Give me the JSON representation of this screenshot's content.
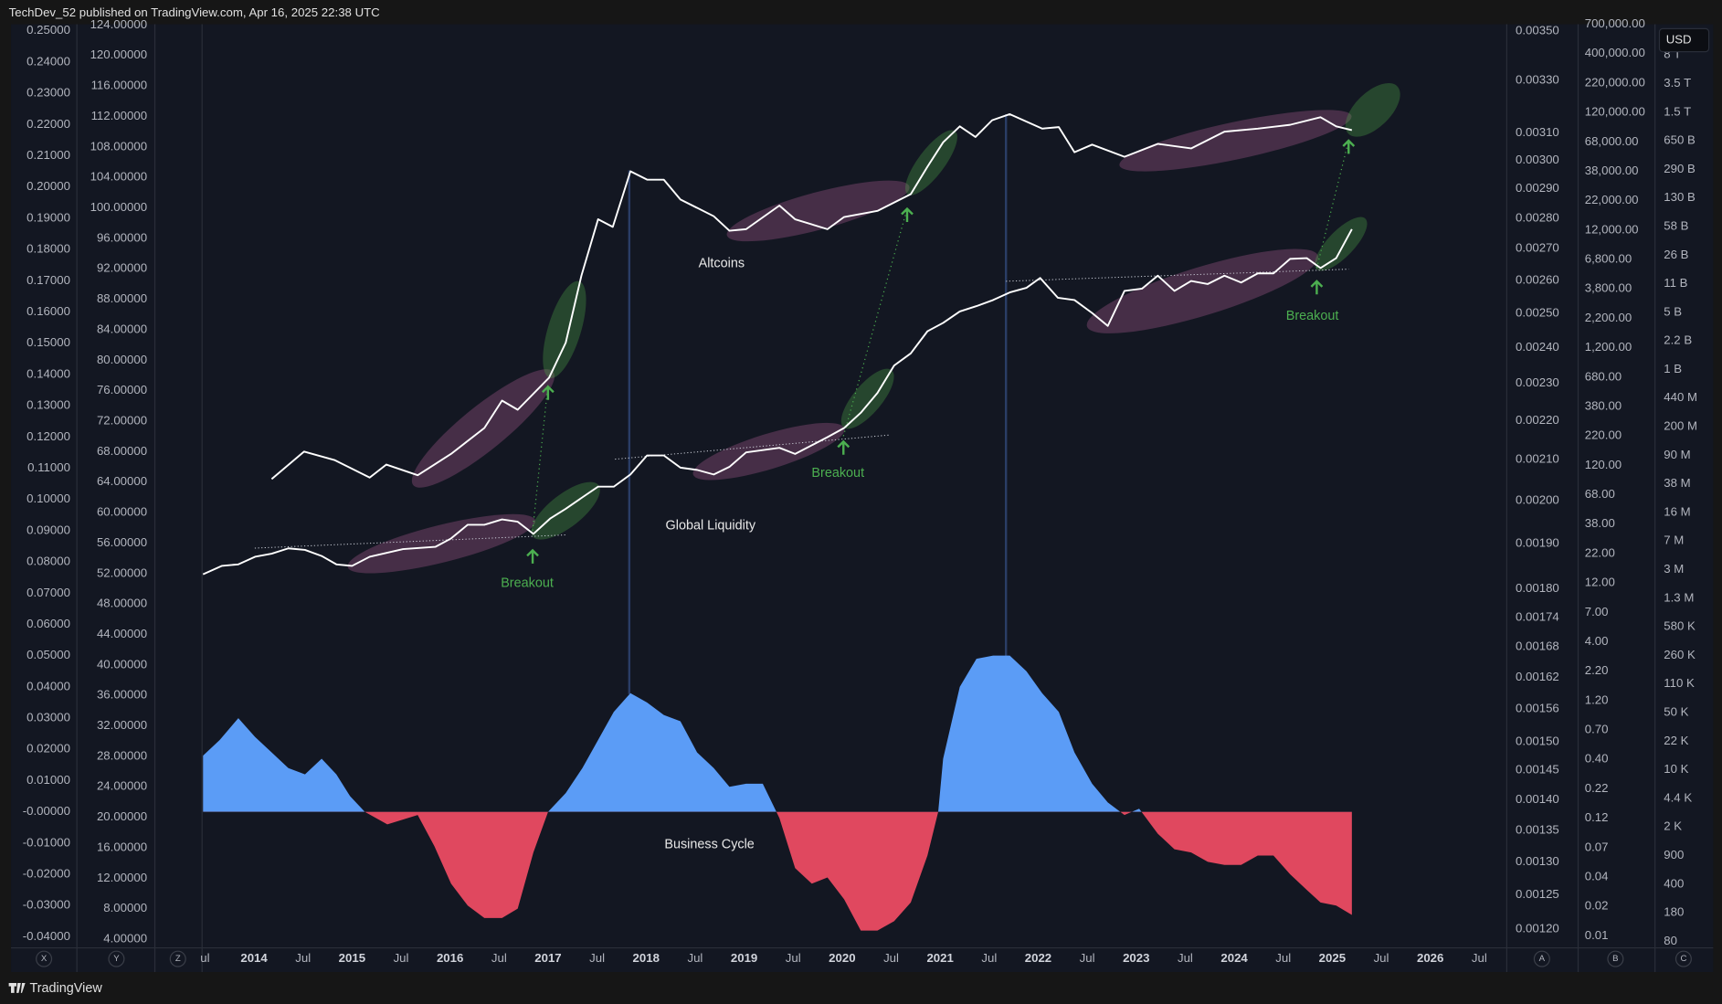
{
  "header": {
    "published": "TechDev_52 published on TradingView.com, Apr 16, 2025 22:38 UTC"
  },
  "footer": {
    "brand": "TradingView"
  },
  "currency": "USD",
  "chart_data": {
    "type": "line",
    "xlim": [
      2013.47,
      2026.78
    ],
    "xticks": [
      {
        "value": 2013.5,
        "label": "ul"
      },
      2014,
      {
        "value": 2014.5,
        "label": "Jul"
      },
      2015,
      {
        "value": 2015.5,
        "label": "Jul"
      },
      2016,
      {
        "value": 2016.5,
        "label": "Jul"
      },
      2017,
      {
        "value": 2017.5,
        "label": "Jul"
      },
      2018,
      {
        "value": 2018.5,
        "label": "Jul"
      },
      2019,
      {
        "value": 2019.5,
        "label": "Jul"
      },
      2020,
      {
        "value": 2020.5,
        "label": "Jul"
      },
      2021,
      {
        "value": 2021.5,
        "label": "Jul"
      },
      2022,
      {
        "value": 2022.5,
        "label": "Jul"
      },
      2023,
      {
        "value": 2023.5,
        "label": "Jul"
      },
      2024,
      {
        "value": 2024.5,
        "label": "Jul"
      },
      2025,
      {
        "value": 2025.5,
        "label": "Jul"
      },
      2026,
      {
        "value": 2026.5,
        "label": "Jul"
      }
    ],
    "ylim": [
      3,
      124.1
    ],
    "yticks": [
      {
        "value": 124,
        "label": "124.00000"
      },
      {
        "value": 120,
        "label": "120.00000"
      },
      {
        "value": 116,
        "label": "116.00000"
      },
      {
        "value": 112,
        "label": "112.00000"
      },
      {
        "value": 108,
        "label": "108.00000"
      },
      {
        "value": 104,
        "label": "104.00000"
      },
      {
        "value": 100,
        "label": "100.00000"
      },
      {
        "value": 96,
        "label": "96.00000"
      },
      {
        "value": 92,
        "label": "92.00000"
      },
      {
        "value": 88,
        "label": "88.00000"
      },
      {
        "value": 84,
        "label": "84.00000"
      },
      {
        "value": 80,
        "label": "80.00000"
      },
      {
        "value": 76,
        "label": "76.00000"
      },
      {
        "value": 72,
        "label": "72.00000"
      },
      {
        "value": 68,
        "label": "68.00000"
      },
      {
        "value": 64,
        "label": "64.00000"
      },
      {
        "value": 60,
        "label": "60.00000"
      },
      {
        "value": 56,
        "label": "56.00000"
      },
      {
        "value": 52,
        "label": "52.00000"
      },
      {
        "value": 48,
        "label": "48.00000"
      },
      {
        "value": 44,
        "label": "44.00000"
      },
      {
        "value": 40,
        "label": "40.00000"
      },
      {
        "value": 36,
        "label": "36.00000"
      },
      {
        "value": 32,
        "label": "32.00000"
      },
      {
        "value": 28,
        "label": "28.00000"
      },
      {
        "value": 24,
        "label": "24.00000"
      },
      {
        "value": 20,
        "label": "20.00000"
      },
      {
        "value": 16,
        "label": "16.00000"
      },
      {
        "value": 12,
        "label": "12.00000"
      },
      {
        "value": 8,
        "label": "8.00000"
      },
      {
        "value": 4,
        "label": "4.00000"
      }
    ],
    "y2lim": [
      -0.0432,
      0.2521
    ],
    "y2ticks": [
      {
        "value": 0.25,
        "label": "0.25000"
      },
      {
        "value": 0.24,
        "label": "0.24000"
      },
      {
        "value": 0.23,
        "label": "0.23000"
      },
      {
        "value": 0.22,
        "label": "0.22000"
      },
      {
        "value": 0.21,
        "label": "0.21000"
      },
      {
        "value": 0.2,
        "label": "0.20000"
      },
      {
        "value": 0.19,
        "label": "0.19000"
      },
      {
        "value": 0.18,
        "label": "0.18000"
      },
      {
        "value": 0.17,
        "label": "0.17000"
      },
      {
        "value": 0.16,
        "label": "0.16000"
      },
      {
        "value": 0.15,
        "label": "0.15000"
      },
      {
        "value": 0.14,
        "label": "0.14000"
      },
      {
        "value": 0.13,
        "label": "0.13000"
      },
      {
        "value": 0.12,
        "label": "0.12000"
      },
      {
        "value": 0.11,
        "label": "0.11000"
      },
      {
        "value": 0.1,
        "label": "0.10000"
      },
      {
        "value": 0.09,
        "label": "0.09000"
      },
      {
        "value": 0.08,
        "label": "0.08000"
      },
      {
        "value": 0.07,
        "label": "0.07000"
      },
      {
        "value": 0.06,
        "label": "0.06000"
      },
      {
        "value": 0.05,
        "label": "0.05000"
      },
      {
        "value": 0.04,
        "label": "0.04000"
      },
      {
        "value": 0.03,
        "label": "0.03000"
      },
      {
        "value": 0.02,
        "label": "0.02000"
      },
      {
        "value": 0.01,
        "label": "0.01000"
      },
      {
        "value": 0,
        "label": "-0.00000"
      },
      {
        "value": -0.01,
        "label": "-0.01000"
      },
      {
        "value": -0.02,
        "label": "-0.02000"
      },
      {
        "value": -0.03,
        "label": "-0.03000"
      },
      {
        "value": -0.04,
        "label": "-0.04000"
      }
    ],
    "y3lim": [
      0.001175,
      0.003528
    ],
    "y3scale": "log",
    "y3ticks": [
      {
        "value": 0.0035,
        "label": "0.00350"
      },
      {
        "value": 0.0033,
        "label": "0.00330"
      },
      {
        "value": 0.0031,
        "label": "0.00310"
      },
      {
        "value": 0.003,
        "label": "0.00300"
      },
      {
        "value": 0.0029,
        "label": "0.00290"
      },
      {
        "value": 0.0028,
        "label": "0.00280"
      },
      {
        "value": 0.0027,
        "label": "0.00270"
      },
      {
        "value": 0.0026,
        "label": "0.00260"
      },
      {
        "value": 0.0025,
        "label": "0.00250"
      },
      {
        "value": 0.0024,
        "label": "0.00240"
      },
      {
        "value": 0.0023,
        "label": "0.00230"
      },
      {
        "value": 0.0022,
        "label": "0.00220"
      },
      {
        "value": 0.0021,
        "label": "0.00210"
      },
      {
        "value": 0.002,
        "label": "0.00200"
      },
      {
        "value": 0.0019,
        "label": "0.00190"
      },
      {
        "value": 0.0018,
        "label": "0.00180"
      },
      {
        "value": 0.00174,
        "label": "0.00174"
      },
      {
        "value": 0.00168,
        "label": "0.00168"
      },
      {
        "value": 0.00162,
        "label": "0.00162"
      },
      {
        "value": 0.00156,
        "label": "0.00156"
      },
      {
        "value": 0.0015,
        "label": "0.00150"
      },
      {
        "value": 0.00145,
        "label": "0.00145"
      },
      {
        "value": 0.0014,
        "label": "0.00140"
      },
      {
        "value": 0.00135,
        "label": "0.00135"
      },
      {
        "value": 0.0013,
        "label": "0.00130"
      },
      {
        "value": 0.00125,
        "label": "0.00125"
      },
      {
        "value": 0.0012,
        "label": "0.00120"
      }
    ],
    "y4tick_labels": [
      "700,000.00",
      "400,000.00",
      "220,000.00",
      "120,000.00",
      "68,000.00",
      "38,000.00",
      "22,000.00",
      "12,000.00",
      "6,800.00",
      "3,800.00",
      "2,200.00",
      "1,200.00",
      "680.00",
      "380.00",
      "220.00",
      "120.00",
      "68.00",
      "38.00",
      "22.00",
      "12.00",
      "7.00",
      "4.00",
      "2.20",
      "1.20",
      "0.70",
      "0.40",
      "0.22",
      "0.12",
      "0.07",
      "0.04",
      "0.02",
      "0.01"
    ],
    "y5tick_labels": [
      "8 T",
      "3.5 T",
      "1.5 T",
      "650 B",
      "290 B",
      "130 B",
      "58 B",
      "26 B",
      "11 B",
      "5 B",
      "2.2 B",
      "1 B",
      "440 M",
      "200 M",
      "90 M",
      "38 M",
      "16 M",
      "7 M",
      "3 M",
      "1.3 M",
      "580 K",
      "260 K",
      "110 K",
      "50 K",
      "22 K",
      "10 K",
      "4.4 K",
      "2 K",
      "900",
      "400",
      "180",
      "80"
    ],
    "axis_letters": [
      "X",
      "Y",
      "Z",
      "A",
      "B",
      "C"
    ],
    "series": [
      {
        "name": "Altcoins",
        "color": "#ffffff",
        "axis": "y",
        "x": [
          2014.18,
          2014.51,
          2014.82,
          2015.18,
          2015.35,
          2015.67,
          2016.01,
          2016.35,
          2016.53,
          2016.69,
          2017.01,
          2017.18,
          2017.34,
          2017.51,
          2017.66,
          2017.84,
          2018.01,
          2018.18,
          2018.35,
          2018.69,
          2018.85,
          2019.02,
          2019.36,
          2019.52,
          2019.85,
          2020.02,
          2020.36,
          2020.7,
          2020.87,
          2021.03,
          2021.2,
          2021.36,
          2021.53,
          2021.71,
          2022.04,
          2022.21,
          2022.37,
          2022.55,
          2022.88,
          2023.22,
          2023.56,
          2023.9,
          2024.24,
          2024.57,
          2024.88,
          2025.04,
          2025.2
        ],
        "values": [
          64.4,
          68.0,
          66.9,
          64.6,
          66.3,
          64.9,
          67.7,
          71.1,
          74.7,
          73.5,
          77.7,
          82.3,
          91.1,
          98.5,
          97.5,
          104.8,
          103.7,
          103.7,
          101.1,
          98.9,
          97.0,
          97.2,
          100.3,
          98.5,
          97.2,
          98.8,
          99.6,
          101.8,
          105.4,
          108.6,
          110.7,
          109.3,
          111.5,
          112.3,
          110.4,
          110.6,
          107.3,
          108.3,
          106.7,
          108.4,
          107.8,
          110.0,
          110.4,
          110.9,
          111.9,
          110.7,
          110.2
        ]
      },
      {
        "name": "Global Liquidity",
        "color": "#ffffff",
        "axis": "y",
        "x": [
          2013.48,
          2013.67,
          2013.84,
          2014.01,
          2014.18,
          2014.35,
          2014.52,
          2014.69,
          2014.84,
          2015.0,
          2015.18,
          2015.52,
          2015.85,
          2016.01,
          2016.18,
          2016.35,
          2016.53,
          2016.69,
          2016.85,
          2017.02,
          2017.18,
          2017.35,
          2017.51,
          2017.67,
          2017.84,
          2018.01,
          2018.18,
          2018.35,
          2018.52,
          2018.69,
          2018.85,
          2019.02,
          2019.36,
          2019.52,
          2019.7,
          2019.85,
          2020.02,
          2020.19,
          2020.36,
          2020.53,
          2020.7,
          2020.87,
          2021.03,
          2021.2,
          2021.37,
          2021.54,
          2021.71,
          2021.88,
          2022.02,
          2022.2,
          2022.37,
          2022.55,
          2022.71,
          2022.88,
          2023.06,
          2023.22,
          2023.39,
          2023.56,
          2023.73,
          2023.9,
          2024.07,
          2024.24,
          2024.4,
          2024.57,
          2024.74,
          2024.88,
          2025.04,
          2025.2
        ],
        "values": [
          51.9,
          53.0,
          53.2,
          54.2,
          54.6,
          55.3,
          55.1,
          54.3,
          53.2,
          53.0,
          54.2,
          55.2,
          55.5,
          56.6,
          58.4,
          58.4,
          59.1,
          58.8,
          57.2,
          59.2,
          60.5,
          62.0,
          63.4,
          63.4,
          65.0,
          67.5,
          67.5,
          65.9,
          65.6,
          65.0,
          66.0,
          67.9,
          68.5,
          67.7,
          68.9,
          69.9,
          71.1,
          73.1,
          75.7,
          79.3,
          80.9,
          83.8,
          84.9,
          86.4,
          87.1,
          87.9,
          88.9,
          89.5,
          90.8,
          88.2,
          87.9,
          86.2,
          84.5,
          89.1,
          89.4,
          91.1,
          89.1,
          90.4,
          90.0,
          91.1,
          90.2,
          91.4,
          91.4,
          93.3,
          93.4,
          92.1,
          93.4,
          97.2
        ]
      },
      {
        "name": "Business Cycle",
        "type": "area",
        "color": "#5b9cf6",
        "negative_color": "#e0485f",
        "axis": "y2",
        "x": [
          2013.48,
          2013.65,
          2013.84,
          2014.01,
          2014.18,
          2014.35,
          2014.52,
          2014.69,
          2014.84,
          2014.98,
          2015.13,
          2015.36,
          2015.67,
          2015.84,
          2016.01,
          2016.18,
          2016.35,
          2016.53,
          2016.69,
          2016.85,
          2017.0,
          2017.18,
          2017.35,
          2017.51,
          2017.67,
          2017.84,
          2018.01,
          2018.18,
          2018.35,
          2018.52,
          2018.69,
          2018.85,
          2019.02,
          2019.19,
          2019.36,
          2019.52,
          2019.69,
          2019.85,
          2020.02,
          2020.19,
          2020.36,
          2020.53,
          2020.7,
          2020.87,
          2020.98,
          2021.03,
          2021.2,
          2021.37,
          2021.54,
          2021.71,
          2021.88,
          2022.04,
          2022.21,
          2022.37,
          2022.55,
          2022.71,
          2022.88,
          2023.03,
          2023.22,
          2023.39,
          2023.56,
          2023.73,
          2023.9,
          2024.07,
          2024.24,
          2024.4,
          2024.57,
          2024.74,
          2024.88,
          2025.04,
          2025.2
        ],
        "values": [
          0.018,
          0.023,
          0.03,
          0.024,
          0.019,
          0.014,
          0.012,
          0.017,
          0.012,
          0.005,
          0.0,
          -0.004,
          -0.001,
          -0.011,
          -0.023,
          -0.03,
          -0.034,
          -0.034,
          -0.031,
          -0.013,
          0.0,
          0.006,
          0.014,
          0.023,
          0.032,
          0.038,
          0.035,
          0.031,
          0.029,
          0.019,
          0.014,
          0.008,
          0.009,
          0.009,
          -0.002,
          -0.018,
          -0.023,
          -0.021,
          -0.028,
          -0.038,
          -0.038,
          -0.035,
          -0.029,
          -0.014,
          0.0,
          0.017,
          0.04,
          0.049,
          0.05,
          0.05,
          0.045,
          0.038,
          0.032,
          0.019,
          0.009,
          0.003,
          -0.001,
          0.001,
          -0.007,
          -0.012,
          -0.013,
          -0.016,
          -0.017,
          -0.017,
          -0.014,
          -0.014,
          -0.02,
          -0.025,
          -0.029,
          -0.03,
          -0.033
        ]
      }
    ],
    "annotations": [
      "Breakout",
      "Breakout",
      "Breakout"
    ]
  }
}
